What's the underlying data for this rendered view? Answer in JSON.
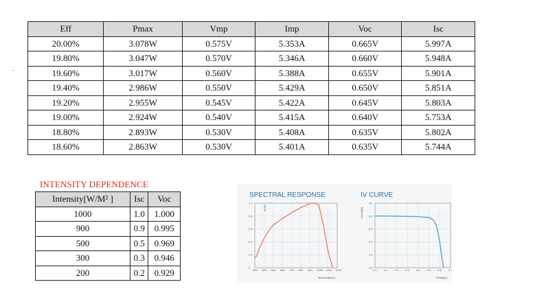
{
  "main_table": {
    "headers": [
      "Eff",
      "Pmax",
      "Vmp",
      "Imp",
      "Voc",
      "Isc"
    ],
    "rows": [
      [
        "20.00%",
        "3.078W",
        "0.575V",
        "5.353A",
        "0.665V",
        "5.997A"
      ],
      [
        "19.80%",
        "3.047W",
        "0.570V",
        "5.346A",
        "0.660V",
        "5.948A"
      ],
      [
        "19.60%",
        "3.017W",
        "0.560V",
        "5.388A",
        "0.655V",
        "5.901A"
      ],
      [
        "19.40%",
        "2.986W",
        "0.550V",
        "5.429A",
        "0.650V",
        "5.851A"
      ],
      [
        "19.20%",
        "2.955W",
        "0.545V",
        "5.422A",
        "0.645V",
        "5.803A"
      ],
      [
        "19.00%",
        "2.924W",
        "0.540V",
        "5.415A",
        "0.640V",
        "5.753A"
      ],
      [
        "18.80%",
        "2.893W",
        "0.530V",
        "5.408A",
        "0.635V",
        "5.802A"
      ],
      [
        "18.60%",
        "2.863W",
        "0.530V",
        "5.401A",
        "0.635V",
        "5.744A"
      ]
    ]
  },
  "intensity": {
    "title": "INTENSITY DEPENDENCE",
    "headers": [
      "Intensity[W/M² ]",
      "Isc",
      "Voc"
    ],
    "rows": [
      [
        "1000",
        "1.0",
        "1.000"
      ],
      [
        "900",
        "0.9",
        "0.995"
      ],
      [
        "500",
        "0.5",
        "0.969"
      ],
      [
        "300",
        "0.3",
        "0.946"
      ],
      [
        "200",
        "0.2",
        "0.929"
      ]
    ]
  },
  "colors": {
    "header_bg": "#d9d9d9",
    "intensity_title": "#d9261c",
    "chart_title": "#2d6f9f",
    "spectral_curve": "#e8846a",
    "iv_curve": "#5aa7c7"
  },
  "chart_data": [
    {
      "type": "line",
      "title": "SPECTRAL RESPONSE",
      "ylabel": "rel.SR",
      "xlabel": "Wavelength[nm]",
      "xlim": [
        300,
        1200
      ],
      "ylim": [
        0,
        1.0
      ],
      "x_ticks": [
        "300",
        "400",
        "500",
        "600",
        "700",
        "800",
        "900",
        "1000",
        "1100",
        "1200"
      ],
      "y_ticks": [
        "0",
        "0.2",
        "0.4",
        "0.6",
        "0.8",
        "1.0"
      ],
      "grid": true,
      "x": [
        300,
        320,
        350,
        400,
        450,
        500,
        600,
        700,
        800,
        900,
        950,
        1000,
        1050,
        1100,
        1150
      ],
      "y": [
        0.15,
        0.18,
        0.3,
        0.45,
        0.57,
        0.66,
        0.76,
        0.85,
        0.93,
        0.99,
        1.0,
        0.97,
        0.65,
        0.25,
        0.0
      ]
    },
    {
      "type": "line",
      "title": "IV CURVE",
      "ylabel": "Current[A]",
      "xlabel": "Voltage[V]",
      "xlim": [
        0,
        0.7
      ],
      "ylim": [
        0,
        10
      ],
      "x_ticks": [
        "0.0",
        "0.1",
        "0.2",
        "0.3",
        "0.4",
        "0.5",
        "0.6",
        "0.7"
      ],
      "y_ticks": [
        "0.0",
        "2.0",
        "4.0",
        "6.0",
        "8.0",
        "10"
      ],
      "grid": true,
      "x": [
        0,
        0.1,
        0.2,
        0.3,
        0.4,
        0.5,
        0.54,
        0.57,
        0.6,
        0.62,
        0.635
      ],
      "y": [
        8.0,
        8.0,
        7.98,
        7.95,
        7.9,
        7.75,
        7.4,
        6.5,
        4.0,
        1.5,
        0.0
      ]
    }
  ]
}
